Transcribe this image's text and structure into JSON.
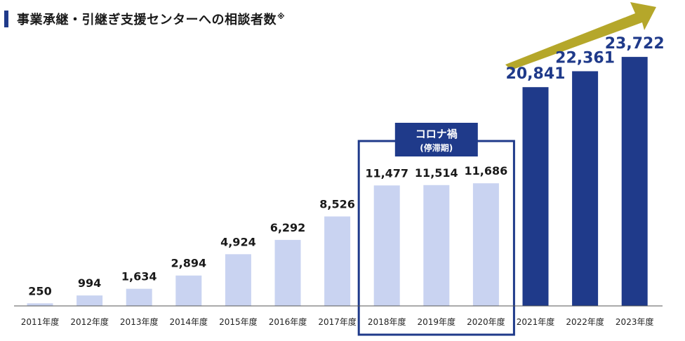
{
  "page": {
    "title": "事業承継・引継ぎ支援センターへの相談者数",
    "title_note": "※"
  },
  "colors": {
    "light_bar": "#c9d3f1",
    "dark_bar": "#1f3a8a",
    "accent": "#1f3a8a",
    "arrow": "#b5a72a",
    "baseline": "#555555"
  },
  "chart_data": {
    "type": "bar",
    "title": "事業承継・引継ぎ支援センターへの相談者数",
    "xlabel": "",
    "ylabel": "",
    "ylim": [
      0,
      25000
    ],
    "grid": false,
    "categories": [
      "2011年度",
      "2012年度",
      "2013年度",
      "2014年度",
      "2015年度",
      "2016年度",
      "2017年度",
      "2018年度",
      "2019年度",
      "2020年度",
      "2021年度",
      "2022年度",
      "2023年度"
    ],
    "values": [
      250,
      994,
      1634,
      2894,
      4924,
      6292,
      8526,
      11477,
      11514,
      11686,
      20841,
      22361,
      23722
    ],
    "value_labels": [
      "250",
      "994",
      "1,634",
      "2,894",
      "4,924",
      "6,292",
      "8,526",
      "11,477",
      "11,514",
      "11,686",
      "20,841",
      "22,361",
      "23,722"
    ],
    "emphasized_from_index": 10,
    "highlight": {
      "label": "コロナ禍",
      "sublabel": "(停滞期)",
      "start_index": 7,
      "end_index": 9
    },
    "trend_arrow": true
  }
}
